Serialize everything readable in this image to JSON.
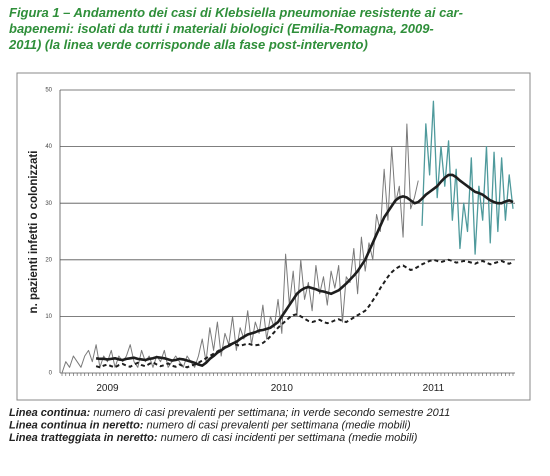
{
  "chart_data": {
    "type": "line",
    "title": [
      "Figura 1 – Andamento dei casi di Klebsiella pneumoniae resistente ai car-",
      "bapenemi: isolati da tutti i materiali biologici  (Emilia-Romagna, 2009-",
      "2011) (la linea verde corrisponde alla fase post-intervento)"
    ],
    "y_label": "n. pazienti infetti o colonizzati",
    "ylim": [
      0,
      50
    ],
    "yticks": [
      0,
      10,
      20,
      30,
      40,
      50
    ],
    "grid": true,
    "categories": [
      null,
      null,
      null,
      null,
      null,
      null,
      null,
      null,
      null,
      null,
      null,
      null,
      "2009",
      null,
      null,
      null,
      null,
      null,
      null,
      null,
      null,
      null,
      null,
      null,
      null,
      null,
      null,
      null,
      null,
      null,
      null,
      null,
      null,
      null,
      null,
      null,
      null,
      null,
      null,
      null,
      null,
      null,
      null,
      null,
      null,
      null,
      null,
      null,
      null,
      null,
      null,
      null,
      null,
      null,
      null,
      null,
      null,
      null,
      "2010",
      null,
      null,
      null,
      null,
      null,
      null,
      null,
      null,
      null,
      null,
      null,
      null,
      null,
      null,
      null,
      null,
      null,
      null,
      null,
      null,
      null,
      null,
      null,
      null,
      null,
      null,
      null,
      null,
      null,
      null,
      null,
      null,
      null,
      null,
      null,
      null,
      null,
      null,
      null,
      "2011",
      null,
      null,
      null,
      null,
      null,
      null,
      null,
      null,
      null,
      null,
      null,
      null,
      null,
      null,
      null,
      null,
      null,
      null,
      null,
      null,
      null
    ],
    "series": [
      {
        "color": "#7a7a7a",
        "linewidth": 1,
        "linestyle": "solid",
        "values": [
          0,
          2,
          1,
          3,
          2,
          1,
          3,
          4,
          2,
          5,
          1,
          3,
          2,
          4,
          1,
          3,
          2,
          3,
          5,
          2,
          1,
          4,
          2,
          3,
          1,
          3,
          2,
          4,
          1,
          2,
          3,
          2,
          1,
          3,
          2,
          1,
          3,
          6,
          2,
          8,
          4,
          9,
          3,
          7,
          5,
          10,
          4,
          8,
          6,
          11,
          5,
          9,
          7,
          12,
          6,
          10,
          8,
          13,
          7,
          21,
          12,
          18,
          10,
          20,
          13,
          16,
          11,
          19,
          14,
          17,
          12,
          18,
          15,
          19,
          9,
          17,
          16,
          22,
          14,
          24,
          18,
          23,
          20,
          28,
          25,
          36,
          27,
          40,
          30,
          33,
          24,
          44,
          29,
          31,
          34,
          null,
          null,
          null,
          null,
          null,
          null,
          null,
          null,
          null,
          null,
          null,
          null,
          null,
          null,
          null,
          null,
          null,
          null,
          null,
          null,
          null,
          null,
          null,
          null,
          null
        ]
      },
      {
        "color": "#4f9a9c",
        "linewidth": 1.3,
        "linestyle": "solid",
        "values": [
          null,
          null,
          null,
          null,
          null,
          null,
          null,
          null,
          null,
          null,
          null,
          null,
          null,
          null,
          null,
          null,
          null,
          null,
          null,
          null,
          null,
          null,
          null,
          null,
          null,
          null,
          null,
          null,
          null,
          null,
          null,
          null,
          null,
          null,
          null,
          null,
          null,
          null,
          null,
          null,
          null,
          null,
          null,
          null,
          null,
          null,
          null,
          null,
          null,
          null,
          null,
          null,
          null,
          null,
          null,
          null,
          null,
          null,
          null,
          null,
          null,
          null,
          null,
          null,
          null,
          null,
          null,
          null,
          null,
          null,
          null,
          null,
          null,
          null,
          null,
          null,
          null,
          null,
          null,
          null,
          null,
          null,
          null,
          null,
          null,
          null,
          null,
          null,
          null,
          null,
          null,
          null,
          null,
          null,
          null,
          26,
          44,
          35,
          48,
          31,
          40,
          33,
          41,
          27,
          36,
          22,
          30,
          25,
          38,
          21,
          33,
          27,
          40,
          23,
          39,
          25,
          38,
          27,
          35,
          29
        ]
      },
      {
        "color": "#1e1e1e",
        "linewidth": 2.6,
        "linestyle": "solid",
        "values": [
          null,
          null,
          null,
          null,
          null,
          null,
          null,
          null,
          null,
          2.6,
          2.5,
          2.5,
          2.4,
          2.5,
          2.6,
          2.4,
          2.3,
          2.5,
          2.6,
          2.7,
          2.5,
          2.4,
          2.3,
          2.5,
          2.6,
          2.8,
          2.7,
          2.6,
          2.4,
          2.2,
          2.3,
          2.5,
          2.4,
          2.2,
          2.0,
          1.8,
          1.5,
          1.3,
          1.8,
          2.5,
          3.0,
          3.6,
          4.0,
          4.5,
          4.8,
          5.2,
          5.5,
          6.0,
          6.4,
          6.8,
          7.0,
          7.2,
          7.5,
          7.6,
          7.8,
          8.0,
          8.5,
          9.0,
          10.0,
          11.0,
          12.0,
          13.0,
          14.0,
          14.6,
          15.0,
          15.2,
          15.0,
          14.8,
          14.5,
          14.4,
          14.2,
          14.0,
          14.3,
          14.6,
          15.2,
          15.8,
          16.5,
          17.2,
          18.0,
          19.0,
          20.0,
          21.5,
          23.0,
          24.5,
          26.0,
          27.5,
          28.5,
          29.5,
          30.5,
          31.0,
          31.2,
          31.0,
          30.5,
          30.0,
          30.2,
          30.8,
          31.5,
          32.0,
          32.5,
          33.0,
          33.8,
          34.5,
          35.0,
          35.0,
          34.6,
          34.0,
          33.5,
          33.0,
          32.5,
          32.0,
          31.8,
          31.5,
          31.0,
          30.5,
          30.2,
          30.0,
          30.0,
          30.3,
          30.5,
          30.2
        ]
      },
      {
        "color": "#1e1e1e",
        "linewidth": 2,
        "linestyle": "dashed",
        "values": [
          null,
          null,
          null,
          null,
          null,
          null,
          null,
          null,
          null,
          1.2,
          1.0,
          1.3,
          1.5,
          1.2,
          1.0,
          1.4,
          1.6,
          1.3,
          1.1,
          1.5,
          1.8,
          1.4,
          1.2,
          1.6,
          1.9,
          1.5,
          1.2,
          1.4,
          1.7,
          1.3,
          1.1,
          1.5,
          1.2,
          1.0,
          1.3,
          1.5,
          1.8,
          2.2,
          2.6,
          3.0,
          3.4,
          3.8,
          4.2,
          4.6,
          5.0,
          5.2,
          5.0,
          4.8,
          5.0,
          5.2,
          5.0,
          4.9,
          5.0,
          5.3,
          5.8,
          6.5,
          7.2,
          8.0,
          8.6,
          9.2,
          9.8,
          10.2,
          10.4,
          10.0,
          9.6,
          9.2,
          9.0,
          9.2,
          9.4,
          9.0,
          8.8,
          9.0,
          9.3,
          9.5,
          9.2,
          9.0,
          9.4,
          9.8,
          10.2,
          10.6,
          11.0,
          11.8,
          12.8,
          13.8,
          15.0,
          16.0,
          17.0,
          17.8,
          18.4,
          18.8,
          19.0,
          18.6,
          18.2,
          18.4,
          18.8,
          19.2,
          19.5,
          19.8,
          20.0,
          19.8,
          19.6,
          19.8,
          20.0,
          19.8,
          19.5,
          19.6,
          19.8,
          19.7,
          19.5,
          19.3,
          19.6,
          19.8,
          19.5,
          19.2,
          19.4,
          19.6,
          19.8,
          19.5,
          19.3,
          19.6
        ]
      }
    ],
    "notes": [
      {
        "label": "Linea continua:",
        "text": "numero di casi prevalenti per settimana; in verde secondo semestre 2011"
      },
      {
        "label": "Linea continua in neretto:",
        "text": "numero di casi prevalenti per settimana (medie mobili)"
      },
      {
        "label": "Linea tratteggiata in neretto:",
        "text": "numero di casi incidenti per settimana (medie mobili)"
      }
    ]
  }
}
